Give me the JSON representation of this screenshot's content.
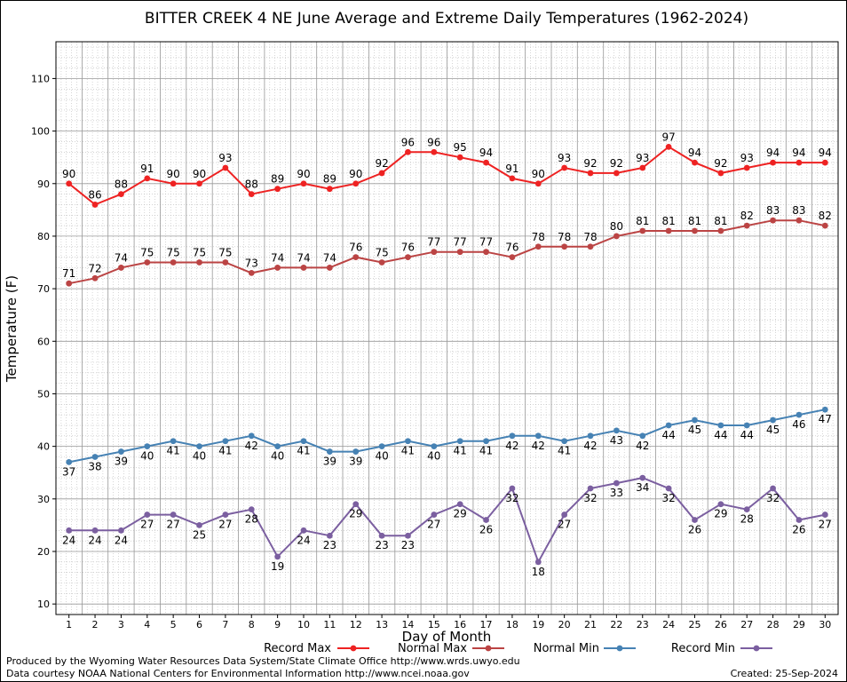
{
  "chart_data": {
    "type": "line",
    "title": "BITTER CREEK 4 NE June Average and Extreme Daily Temperatures (1962-2024)",
    "xlabel": "Day of Month",
    "ylabel": "Temperature (F)",
    "xlim": [
      0.5,
      30.5
    ],
    "ylim": [
      8,
      117
    ],
    "yticks": [
      10,
      20,
      30,
      40,
      50,
      60,
      70,
      80,
      90,
      100,
      110
    ],
    "x": [
      1,
      2,
      3,
      4,
      5,
      6,
      7,
      8,
      9,
      10,
      11,
      12,
      13,
      14,
      15,
      16,
      17,
      18,
      19,
      20,
      21,
      22,
      23,
      24,
      25,
      26,
      27,
      28,
      29,
      30
    ],
    "grid": true,
    "legend_position": "bottom",
    "series": [
      {
        "name": "Record Max",
        "color": "#ee2222",
        "label_pos": "above",
        "values": [
          90,
          86,
          88,
          91,
          90,
          90,
          93,
          88,
          89,
          90,
          89,
          90,
          92,
          96,
          96,
          95,
          94,
          91,
          90,
          93,
          92,
          92,
          93,
          97,
          94,
          92,
          93,
          94,
          94,
          94
        ]
      },
      {
        "name": "Normal Max",
        "color": "#bb4444",
        "label_pos": "above",
        "values": [
          71,
          72,
          74,
          75,
          75,
          75,
          75,
          73,
          74,
          74,
          74,
          76,
          75,
          76,
          77,
          77,
          77,
          76,
          78,
          78,
          78,
          80,
          81,
          81,
          81,
          81,
          82,
          83,
          83,
          82
        ]
      },
      {
        "name": "Normal Min",
        "color": "#4682b4",
        "label_pos": "below",
        "values": [
          37,
          38,
          39,
          40,
          41,
          40,
          41,
          42,
          40,
          41,
          39,
          39,
          40,
          41,
          40,
          41,
          41,
          42,
          42,
          41,
          42,
          43,
          42,
          44,
          45,
          44,
          44,
          45,
          46,
          47
        ]
      },
      {
        "name": "Record Min",
        "color": "#7b5fa0",
        "label_pos": "below",
        "values": [
          24,
          24,
          24,
          27,
          27,
          25,
          27,
          28,
          19,
          24,
          23,
          29,
          23,
          23,
          27,
          29,
          26,
          32,
          18,
          27,
          32,
          33,
          34,
          32,
          26,
          29,
          28,
          32,
          26,
          27
        ]
      }
    ]
  },
  "footer": {
    "line1": "Produced by the Wyoming Water Resources Data System/State Climate Office http://www.wrds.uwyo.edu",
    "line2": "Data courtesy NOAA National Centers for Environmental Information http://www.ncei.noaa.gov",
    "created": "Created:  25-Sep-2024"
  }
}
